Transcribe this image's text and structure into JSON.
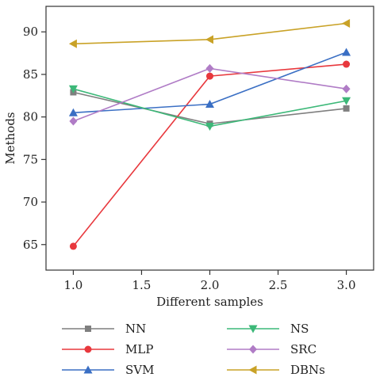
{
  "chart_data": {
    "type": "line",
    "xlabel": "Different samples",
    "ylabel": "Methods",
    "xlim": [
      0.8,
      3.2
    ],
    "ylim": [
      62,
      93
    ],
    "xticks": [
      1.0,
      1.5,
      2.0,
      2.5,
      3.0
    ],
    "xtick_labels": [
      "1.0",
      "1.5",
      "2.0",
      "2.5",
      "3.0"
    ],
    "yticks": [
      65,
      70,
      75,
      80,
      85,
      90
    ],
    "ytick_labels": [
      "65",
      "70",
      "75",
      "80",
      "85",
      "90"
    ],
    "grid": false,
    "legend_position": "bottom",
    "x": [
      1.0,
      2.0,
      3.0
    ],
    "series": [
      {
        "name": "NN",
        "values": [
          82.9,
          79.2,
          81.0
        ],
        "color": "#7f7f7f",
        "marker": "square"
      },
      {
        "name": "MLP",
        "values": [
          64.8,
          84.8,
          86.2
        ],
        "color": "#e8383d",
        "marker": "circle"
      },
      {
        "name": "SVM",
        "values": [
          80.5,
          81.5,
          87.6
        ],
        "color": "#3a6fc4",
        "marker": "triangle-up"
      },
      {
        "name": "NS",
        "values": [
          83.3,
          78.9,
          81.9
        ],
        "color": "#3cb878",
        "marker": "triangle-down"
      },
      {
        "name": "SRC",
        "values": [
          79.5,
          85.7,
          83.3
        ],
        "color": "#b07cc6",
        "marker": "diamond"
      },
      {
        "name": "DBNs",
        "values": [
          88.6,
          89.1,
          91.0
        ],
        "color": "#c9a227",
        "marker": "triangle-left"
      }
    ]
  }
}
